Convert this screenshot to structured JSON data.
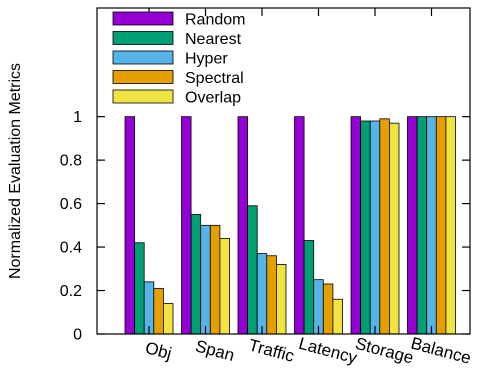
{
  "chart_data": {
    "type": "bar",
    "title": "",
    "xlabel": "",
    "ylabel": "Normalized Evaluation Metrics",
    "ylim": [
      0,
      1.5
    ],
    "yticks": [
      0,
      0.2,
      0.4,
      0.6,
      0.8,
      1
    ],
    "ytick_labels": [
      "0",
      "0.2",
      "0.4",
      "0.6",
      "0.8",
      "1"
    ],
    "grid": false,
    "legend_position": "top-left",
    "categories": [
      "Obj",
      "Span",
      "Traffic",
      "Latency",
      "Storage",
      "Balance"
    ],
    "series": [
      {
        "name": "Random",
        "color": "#9400d3",
        "values": [
          1.0,
          1.0,
          1.0,
          1.0,
          1.0,
          1.0
        ]
      },
      {
        "name": "Nearest",
        "color": "#009e73",
        "values": [
          0.42,
          0.55,
          0.59,
          0.43,
          0.98,
          1.0
        ]
      },
      {
        "name": "Hyper",
        "color": "#56b4e9",
        "values": [
          0.24,
          0.5,
          0.37,
          0.25,
          0.98,
          1.0
        ]
      },
      {
        "name": "Spectral",
        "color": "#e69f00",
        "values": [
          0.21,
          0.5,
          0.36,
          0.23,
          0.99,
          1.0
        ]
      },
      {
        "name": "Overlap",
        "color": "#f0e442",
        "values": [
          0.14,
          0.44,
          0.32,
          0.16,
          0.97,
          1.0
        ]
      }
    ]
  }
}
